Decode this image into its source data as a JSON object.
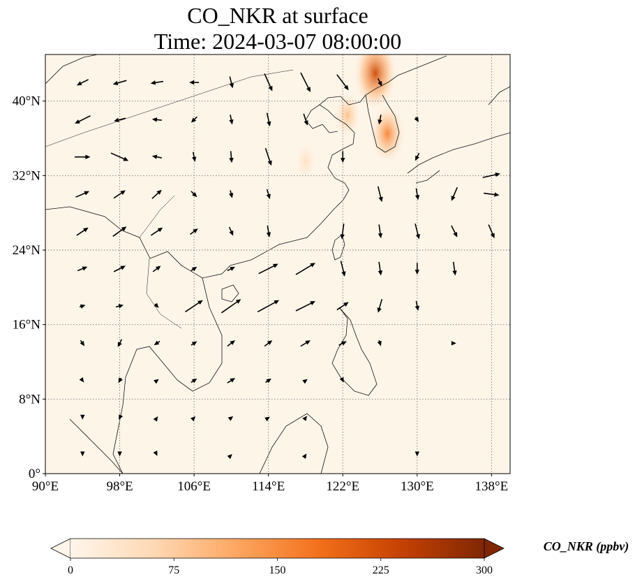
{
  "title": {
    "line1": "CO_NKR at surface",
    "line2": "Time: 2024-03-07 08:00:00"
  },
  "map": {
    "lon_range": [
      90,
      140
    ],
    "lat_range": [
      0,
      45
    ],
    "lon_ticks": [
      {
        "value": 90,
        "label": "90°E"
      },
      {
        "value": 98,
        "label": "98°E"
      },
      {
        "value": 106,
        "label": "106°E"
      },
      {
        "value": 114,
        "label": "114°E"
      },
      {
        "value": 122,
        "label": "122°E"
      },
      {
        "value": 130,
        "label": "130°E"
      },
      {
        "value": 138,
        "label": "138°E"
      }
    ],
    "lat_ticks": [
      {
        "value": 0,
        "label": "0°"
      },
      {
        "value": 8,
        "label": "8°N"
      },
      {
        "value": 16,
        "label": "16°N"
      },
      {
        "value": 24,
        "label": "24°N"
      },
      {
        "value": 32,
        "label": "32°N"
      },
      {
        "value": 40,
        "label": "40°N"
      }
    ],
    "gridlines": true,
    "background_color": "#fef5e9",
    "coastline_color": "#111111"
  },
  "colorbar": {
    "label": "CO_NKR (ppbv)",
    "min": 0,
    "max": 300,
    "extend": "both",
    "ticks": [
      {
        "value": 0,
        "label": "0"
      },
      {
        "value": 75,
        "label": "75"
      },
      {
        "value": 150,
        "label": "150"
      },
      {
        "value": 225,
        "label": "225"
      },
      {
        "value": 300,
        "label": "300"
      }
    ],
    "colors": [
      "#fff5eb",
      "#fdd9b4",
      "#fda762",
      "#f3701b",
      "#c54102",
      "#7f2704"
    ]
  },
  "concentration_features": [
    {
      "name": "northeast-china-plume",
      "lon": 125.5,
      "lat": 43.0,
      "value": 230
    },
    {
      "name": "korea-plume",
      "lon": 126.8,
      "lat": 36.5,
      "value": 160
    },
    {
      "name": "bohai-plume",
      "lon": 122.5,
      "lat": 38.5,
      "value": 90
    },
    {
      "name": "east-china-plume",
      "lon": 118.0,
      "lat": 33.5,
      "value": 45
    }
  ],
  "wind_vectors": [
    {
      "lon": 94,
      "lat": 42,
      "u": -1.2,
      "v": -0.6
    },
    {
      "lon": 98,
      "lat": 42,
      "u": -1.4,
      "v": -0.4
    },
    {
      "lon": 102,
      "lat": 42,
      "u": -1.3,
      "v": -0.2
    },
    {
      "lon": 106,
      "lat": 42,
      "u": -1.0,
      "v": 0.0
    },
    {
      "lon": 110,
      "lat": 42,
      "u": 0.3,
      "v": -1.2
    },
    {
      "lon": 114,
      "lat": 42,
      "u": 0.8,
      "v": -1.8
    },
    {
      "lon": 118,
      "lat": 42,
      "u": 1.0,
      "v": -2.0
    },
    {
      "lon": 122,
      "lat": 42,
      "u": 1.2,
      "v": -1.6
    },
    {
      "lon": 126,
      "lat": 42,
      "u": 0.4,
      "v": -0.8
    },
    {
      "lon": 94,
      "lat": 38,
      "u": -1.6,
      "v": -0.8
    },
    {
      "lon": 98,
      "lat": 38,
      "u": -1.2,
      "v": -0.3
    },
    {
      "lon": 102,
      "lat": 38,
      "u": -1.0,
      "v": 0.1
    },
    {
      "lon": 106,
      "lat": 38,
      "u": -0.6,
      "v": -0.6
    },
    {
      "lon": 110,
      "lat": 38,
      "u": 0.2,
      "v": -1.0
    },
    {
      "lon": 114,
      "lat": 38,
      "u": 0.3,
      "v": -1.4
    },
    {
      "lon": 118,
      "lat": 38,
      "u": 0.4,
      "v": -1.2
    },
    {
      "lon": 126,
      "lat": 38,
      "u": -0.2,
      "v": -1.0
    },
    {
      "lon": 130,
      "lat": 38,
      "u": 0.3,
      "v": -0.5
    },
    {
      "lon": 94,
      "lat": 34,
      "u": 1.6,
      "v": 0.0
    },
    {
      "lon": 98,
      "lat": 34,
      "u": 1.8,
      "v": -0.8
    },
    {
      "lon": 102,
      "lat": 34,
      "u": -1.0,
      "v": 0.2
    },
    {
      "lon": 106,
      "lat": 34,
      "u": 0.2,
      "v": -1.0
    },
    {
      "lon": 110,
      "lat": 34,
      "u": 0.1,
      "v": -1.2
    },
    {
      "lon": 114,
      "lat": 34,
      "u": 0.6,
      "v": -1.8
    },
    {
      "lon": 122,
      "lat": 34,
      "u": 0.0,
      "v": -1.2
    },
    {
      "lon": 130,
      "lat": 34,
      "u": -0.4,
      "v": -0.8
    },
    {
      "lon": 138,
      "lat": 32,
      "u": 1.8,
      "v": 0.4
    },
    {
      "lon": 94,
      "lat": 30,
      "u": 1.4,
      "v": 0.6
    },
    {
      "lon": 98,
      "lat": 30,
      "u": 1.2,
      "v": 0.8
    },
    {
      "lon": 102,
      "lat": 30,
      "u": 1.0,
      "v": 0.9
    },
    {
      "lon": 106,
      "lat": 30,
      "u": 0.6,
      "v": -0.6
    },
    {
      "lon": 110,
      "lat": 30,
      "u": 0.2,
      "v": -0.8
    },
    {
      "lon": 114,
      "lat": 30,
      "u": 0.3,
      "v": -1.0
    },
    {
      "lon": 126,
      "lat": 30,
      "u": 0.4,
      "v": -1.6
    },
    {
      "lon": 130,
      "lat": 30,
      "u": 0.2,
      "v": -1.2
    },
    {
      "lon": 134,
      "lat": 30,
      "u": -0.6,
      "v": -1.4
    },
    {
      "lon": 138,
      "lat": 30,
      "u": 1.6,
      "v": -0.2
    },
    {
      "lon": 94,
      "lat": 26,
      "u": 1.2,
      "v": 0.8
    },
    {
      "lon": 98,
      "lat": 26,
      "u": 1.4,
      "v": 1.0
    },
    {
      "lon": 102,
      "lat": 26,
      "u": 1.2,
      "v": 0.8
    },
    {
      "lon": 106,
      "lat": 26,
      "u": 0.8,
      "v": 0.6
    },
    {
      "lon": 110,
      "lat": 26,
      "u": 0.4,
      "v": -0.9
    },
    {
      "lon": 114,
      "lat": 26,
      "u": 0.2,
      "v": -1.2
    },
    {
      "lon": 122,
      "lat": 26,
      "u": -0.2,
      "v": -1.6
    },
    {
      "lon": 126,
      "lat": 26,
      "u": 0.2,
      "v": -1.4
    },
    {
      "lon": 130,
      "lat": 26,
      "u": 0.4,
      "v": -1.6
    },
    {
      "lon": 134,
      "lat": 26,
      "u": 0.6,
      "v": -1.2
    },
    {
      "lon": 138,
      "lat": 26,
      "u": 0.6,
      "v": -1.4
    },
    {
      "lon": 94,
      "lat": 22,
      "u": 1.0,
      "v": 0.4
    },
    {
      "lon": 98,
      "lat": 22,
      "u": 1.2,
      "v": 0.6
    },
    {
      "lon": 102,
      "lat": 22,
      "u": 0.8,
      "v": 0.6
    },
    {
      "lon": 106,
      "lat": 22,
      "u": 0.6,
      "v": 0.4
    },
    {
      "lon": 110,
      "lat": 22,
      "u": 0.8,
      "v": 0.4
    },
    {
      "lon": 114,
      "lat": 22,
      "u": 2.0,
      "v": 1.0
    },
    {
      "lon": 118,
      "lat": 22,
      "u": 2.0,
      "v": 1.2
    },
    {
      "lon": 122,
      "lat": 22,
      "u": 0.4,
      "v": -1.6
    },
    {
      "lon": 126,
      "lat": 22,
      "u": 0.2,
      "v": -1.4
    },
    {
      "lon": 130,
      "lat": 22,
      "u": 0.0,
      "v": -1.2
    },
    {
      "lon": 134,
      "lat": 22,
      "u": 0.2,
      "v": -1.4
    },
    {
      "lon": 94,
      "lat": 18,
      "u": 0.6,
      "v": 0.2
    },
    {
      "lon": 98,
      "lat": 18,
      "u": 0.8,
      "v": 0.2
    },
    {
      "lon": 102,
      "lat": 18,
      "u": 0.4,
      "v": -0.4
    },
    {
      "lon": 106,
      "lat": 18,
      "u": 1.8,
      "v": 1.2
    },
    {
      "lon": 110,
      "lat": 18,
      "u": 2.0,
      "v": 1.4
    },
    {
      "lon": 114,
      "lat": 18,
      "u": 2.2,
      "v": 1.2
    },
    {
      "lon": 118,
      "lat": 18,
      "u": 2.0,
      "v": 1.0
    },
    {
      "lon": 122,
      "lat": 18,
      "u": 1.2,
      "v": 0.8
    },
    {
      "lon": 126,
      "lat": 18,
      "u": -0.4,
      "v": -1.4
    },
    {
      "lon": 130,
      "lat": 18,
      "u": 0.2,
      "v": -1.0
    },
    {
      "lon": 94,
      "lat": 14,
      "u": 0.4,
      "v": -0.6
    },
    {
      "lon": 98,
      "lat": 14,
      "u": -0.4,
      "v": -0.8
    },
    {
      "lon": 102,
      "lat": 14,
      "u": -0.6,
      "v": -0.4
    },
    {
      "lon": 106,
      "lat": 14,
      "u": 0.6,
      "v": 0.4
    },
    {
      "lon": 110,
      "lat": 14,
      "u": 0.8,
      "v": 0.6
    },
    {
      "lon": 114,
      "lat": 14,
      "u": 0.8,
      "v": 0.6
    },
    {
      "lon": 118,
      "lat": 14,
      "u": 1.0,
      "v": 0.6
    },
    {
      "lon": 122,
      "lat": 14,
      "u": 0.8,
      "v": 0.4
    },
    {
      "lon": 126,
      "lat": 14,
      "u": 0.2,
      "v": -0.6
    },
    {
      "lon": 134,
      "lat": 14,
      "u": 0.4,
      "v": 0.0
    },
    {
      "lon": 94,
      "lat": 10,
      "u": 0.3,
      "v": -0.4
    },
    {
      "lon": 98,
      "lat": 10,
      "u": -0.3,
      "v": -0.5
    },
    {
      "lon": 102,
      "lat": 10,
      "u": 0.4,
      "v": 0.3
    },
    {
      "lon": 106,
      "lat": 10,
      "u": 0.6,
      "v": 0.4
    },
    {
      "lon": 110,
      "lat": 10,
      "u": 0.8,
      "v": 0.5
    },
    {
      "lon": 114,
      "lat": 10,
      "u": 0.6,
      "v": 0.4
    },
    {
      "lon": 118,
      "lat": 10,
      "u": 0.4,
      "v": 0.3
    },
    {
      "lon": 122,
      "lat": 10,
      "u": 0.2,
      "v": -0.4
    },
    {
      "lon": 94,
      "lat": 6,
      "u": 0.0,
      "v": -0.4
    },
    {
      "lon": 98,
      "lat": 6,
      "u": -0.2,
      "v": -0.4
    },
    {
      "lon": 102,
      "lat": 6,
      "u": 0.2,
      "v": 0.3
    },
    {
      "lon": 106,
      "lat": 6,
      "u": 0.3,
      "v": 0.3
    },
    {
      "lon": 110,
      "lat": 6,
      "u": 0.4,
      "v": 0.3
    },
    {
      "lon": 114,
      "lat": 6,
      "u": 0.3,
      "v": 0.2
    },
    {
      "lon": 118,
      "lat": 6,
      "u": 0.3,
      "v": 0.4
    },
    {
      "lon": 94,
      "lat": 2,
      "u": 0.0,
      "v": -0.3
    },
    {
      "lon": 98,
      "lat": 2,
      "u": 0.0,
      "v": -0.3
    },
    {
      "lon": 102,
      "lat": 2,
      "u": 0.1,
      "v": -0.2
    },
    {
      "lon": 110,
      "lat": 2,
      "u": 0.2,
      "v": 0.2
    },
    {
      "lon": 118,
      "lat": 2,
      "u": 0.2,
      "v": 0.3
    },
    {
      "lon": 130,
      "lat": 2,
      "u": 0.0,
      "v": -0.3
    }
  ]
}
